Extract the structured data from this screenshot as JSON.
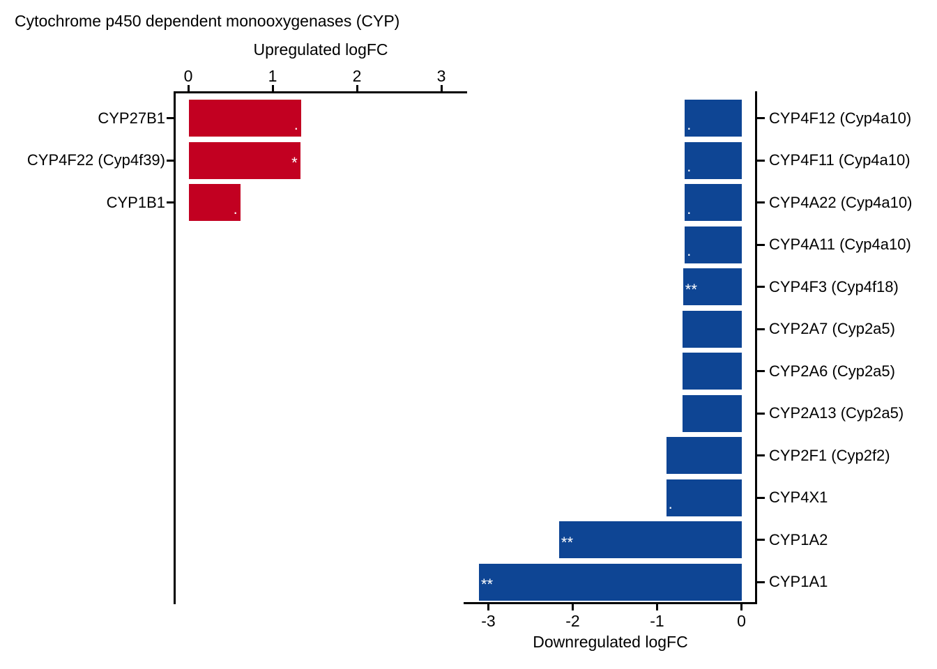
{
  "title": "Cytochrome p450 dependent monooxygenases (CYP)",
  "sig_marker_color": "#FFFFFF",
  "chart_data": {
    "type": "bar",
    "orientation": "horizontal",
    "title": "Cytochrome p450 dependent monooxygenases (CYP)",
    "panels": [
      {
        "name": "upregulated",
        "axis_label": "Upregulated logFC",
        "axis_position": "top",
        "axis_ticks": [
          0,
          1,
          2,
          3
        ],
        "xlim": [
          0,
          3.45
        ],
        "bar_color": "#C20021",
        "bars": [
          {
            "label": "CYP27B1",
            "value": 1.33,
            "sig": "."
          },
          {
            "label": "CYP4F22 (Cyp4f39)",
            "value": 1.32,
            "sig": "*"
          },
          {
            "label": "CYP1B1",
            "value": 0.61,
            "sig": "."
          }
        ]
      },
      {
        "name": "downregulated",
        "axis_label": "Downregulated logFC",
        "axis_position": "bottom",
        "axis_ticks": [
          -3,
          -2,
          -1,
          0
        ],
        "xlim": [
          -3.3,
          0
        ],
        "bar_color": "#0E4594",
        "bars": [
          {
            "label": "CYP4F12 (Cyp4a10)",
            "value": -0.68,
            "sig": "."
          },
          {
            "label": "CYP4F11 (Cyp4a10)",
            "value": -0.68,
            "sig": "."
          },
          {
            "label": "CYP4A22 (Cyp4a10)",
            "value": -0.68,
            "sig": "."
          },
          {
            "label": "CYP4A11 (Cyp4a10)",
            "value": -0.68,
            "sig": "."
          },
          {
            "label": "CYP4F3 (Cyp4f18)",
            "value": -0.7,
            "sig": "**"
          },
          {
            "label": "CYP2A7 (Cyp2a5)",
            "value": -0.71,
            "sig": null
          },
          {
            "label": "CYP2A6 (Cyp2a5)",
            "value": -0.71,
            "sig": null
          },
          {
            "label": "CYP2A13 (Cyp2a5)",
            "value": -0.71,
            "sig": null
          },
          {
            "label": "CYP2F1 (Cyp2f2)",
            "value": -0.9,
            "sig": null
          },
          {
            "label": "CYP4X1",
            "value": -0.9,
            "sig": "."
          },
          {
            "label": "CYP1A2",
            "value": -2.17,
            "sig": "**"
          },
          {
            "label": "CYP1A1",
            "value": -3.12,
            "sig": "**"
          }
        ]
      }
    ],
    "grid": false,
    "legend": false
  }
}
